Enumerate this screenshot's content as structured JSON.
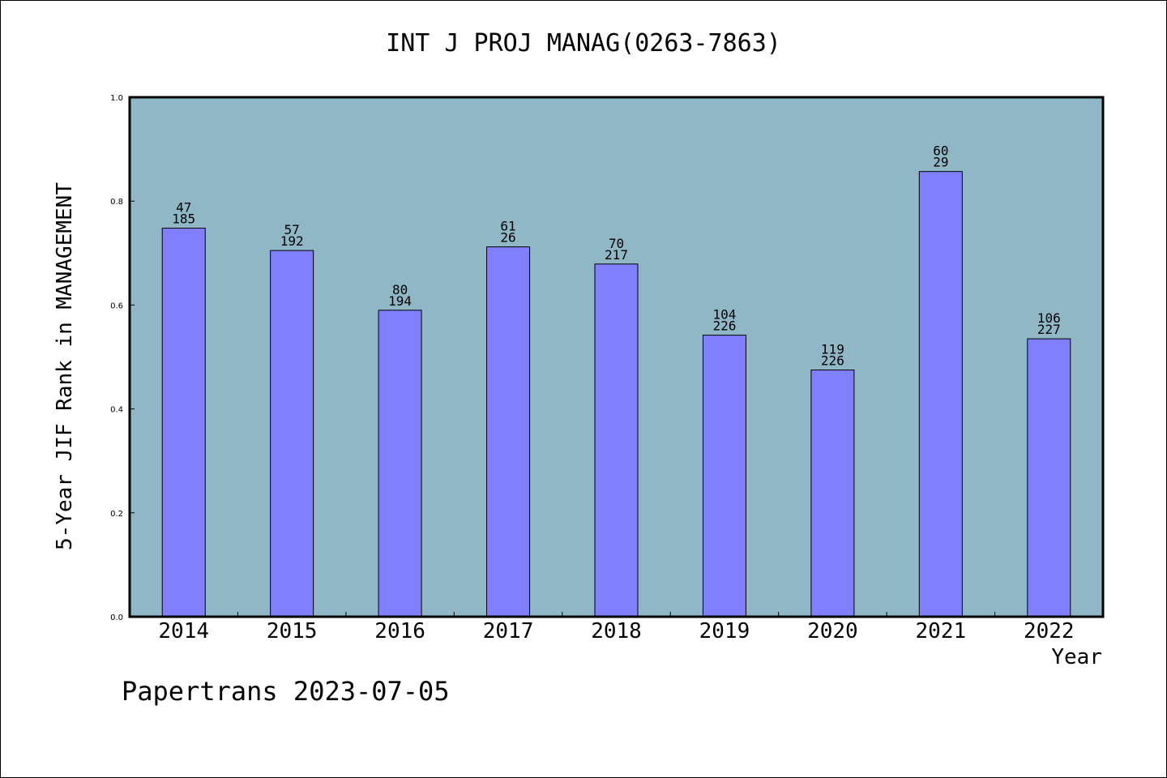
{
  "chart_data": {
    "type": "bar",
    "title": "INT J PROJ MANAG(0263-7863)",
    "xlabel": "Year",
    "ylabel": "5-Year JIF Rank in MANAGEMENT",
    "ylim": [
      0,
      1.0
    ],
    "yticks": [
      "0.0",
      "0.2",
      "0.4",
      "0.6",
      "0.8",
      "1.0"
    ],
    "categories": [
      "2014",
      "2015",
      "2016",
      "2017",
      "2018",
      "2019",
      "2020",
      "2021",
      "2022"
    ],
    "values": [
      0.748,
      0.705,
      0.59,
      0.712,
      0.679,
      0.542,
      0.475,
      0.857,
      0.535
    ],
    "rank_labels": [
      "47",
      "57",
      "80",
      "61",
      "70",
      "104",
      "119",
      "60",
      "106"
    ],
    "total_labels": [
      "185",
      "192",
      "194",
      "26",
      "217",
      "226",
      "226",
      "29",
      "227"
    ],
    "plot_background": "#8fb7c6",
    "bar_color": "#8080ff",
    "grid": false,
    "legend": "none"
  },
  "footer": {
    "text": "Papertrans 2023-07-05"
  }
}
